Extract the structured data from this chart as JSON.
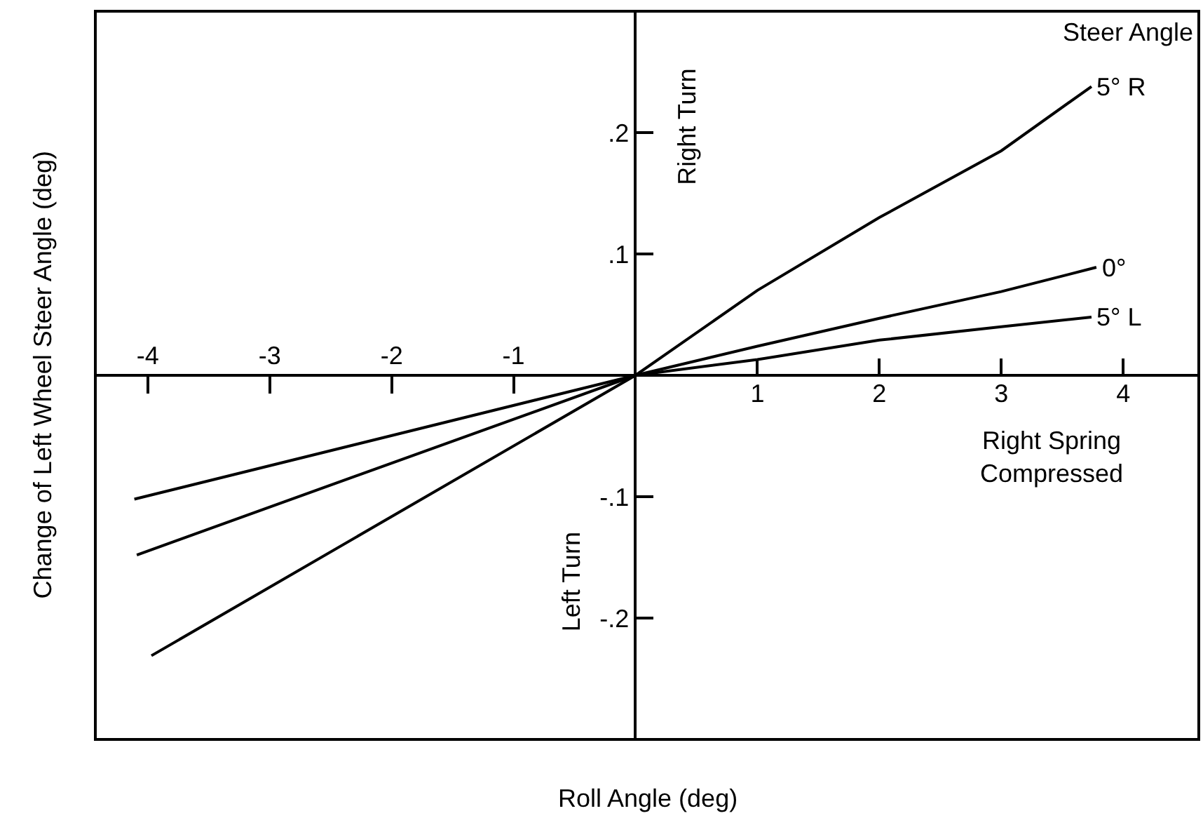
{
  "chart_data": {
    "type": "line",
    "xlabel": "Roll Angle (deg)",
    "ylabel": "Change of Left Wheel Steer Angle (deg)",
    "legend_title": "Steer Angle",
    "annotations": [
      "Right Turn",
      "Right Spring\nCompressed",
      "Left Turn"
    ],
    "series": [
      {
        "name": "5° R",
        "color": "#000000",
        "x": [
          -3.97,
          0,
          1,
          2,
          3,
          3.74
        ],
        "values": [
          -0.231,
          0,
          0.07,
          0.13,
          0.185,
          0.238
        ]
      },
      {
        "name": "0°",
        "color": "#000000",
        "x": [
          -4.09,
          0,
          1,
          2,
          3,
          3.78
        ],
        "values": [
          -0.148,
          0,
          0.024,
          0.047,
          0.069,
          0.089
        ]
      },
      {
        "name": "5° L",
        "color": "#000000",
        "x": [
          -4.11,
          0,
          1,
          2,
          3,
          3.74
        ],
        "values": [
          -0.102,
          0,
          0.013,
          0.029,
          0.04,
          0.048
        ]
      }
    ],
    "xlim": [
      -4.43,
      4.62
    ],
    "ylim": [
      -0.3,
      0.3
    ],
    "xticks": [
      -4,
      -3,
      -2,
      -1
    ],
    "x2lim": [
      -4.43,
      4.62
    ],
    "x2ticks": [
      1,
      2,
      3,
      4
    ],
    "yticks": [
      {
        "value": 0.2,
        "label": ".2"
      },
      {
        "value": 0.1,
        "label": ".1"
      },
      {
        "value": -0.1,
        "label": "-.1"
      },
      {
        "value": -0.2,
        "label": "-.2"
      }
    ],
    "grid": false,
    "legend": false,
    "marker": "none",
    "line_style": "solid"
  }
}
